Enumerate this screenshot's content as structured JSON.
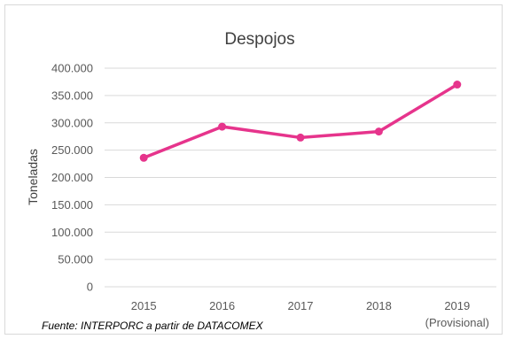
{
  "chart_data": {
    "type": "line",
    "title": "Despojos",
    "ylabel": "Toneladas",
    "xlabel": "",
    "categories": [
      "2015",
      "2016",
      "2017",
      "2018",
      "2019"
    ],
    "category_sublabels": [
      "",
      "",
      "",
      "",
      "(Provisional)"
    ],
    "series": [
      {
        "values": [
          236000,
          293000,
          273000,
          284000,
          370000
        ]
      }
    ],
    "ylim": [
      0,
      400000
    ],
    "yticks": [
      0,
      50000,
      100000,
      150000,
      200000,
      250000,
      300000,
      350000,
      400000
    ],
    "ytick_labels": [
      "0",
      "50.000",
      "100.000",
      "150.000",
      "200.000",
      "250.000",
      "300.000",
      "350.000",
      "400.000"
    ],
    "grid": true,
    "colors": {
      "line": "#e6348c",
      "grid": "#d9d9d9"
    }
  },
  "source": "Fuente: INTERPORC  a partir de DATACOMEX"
}
